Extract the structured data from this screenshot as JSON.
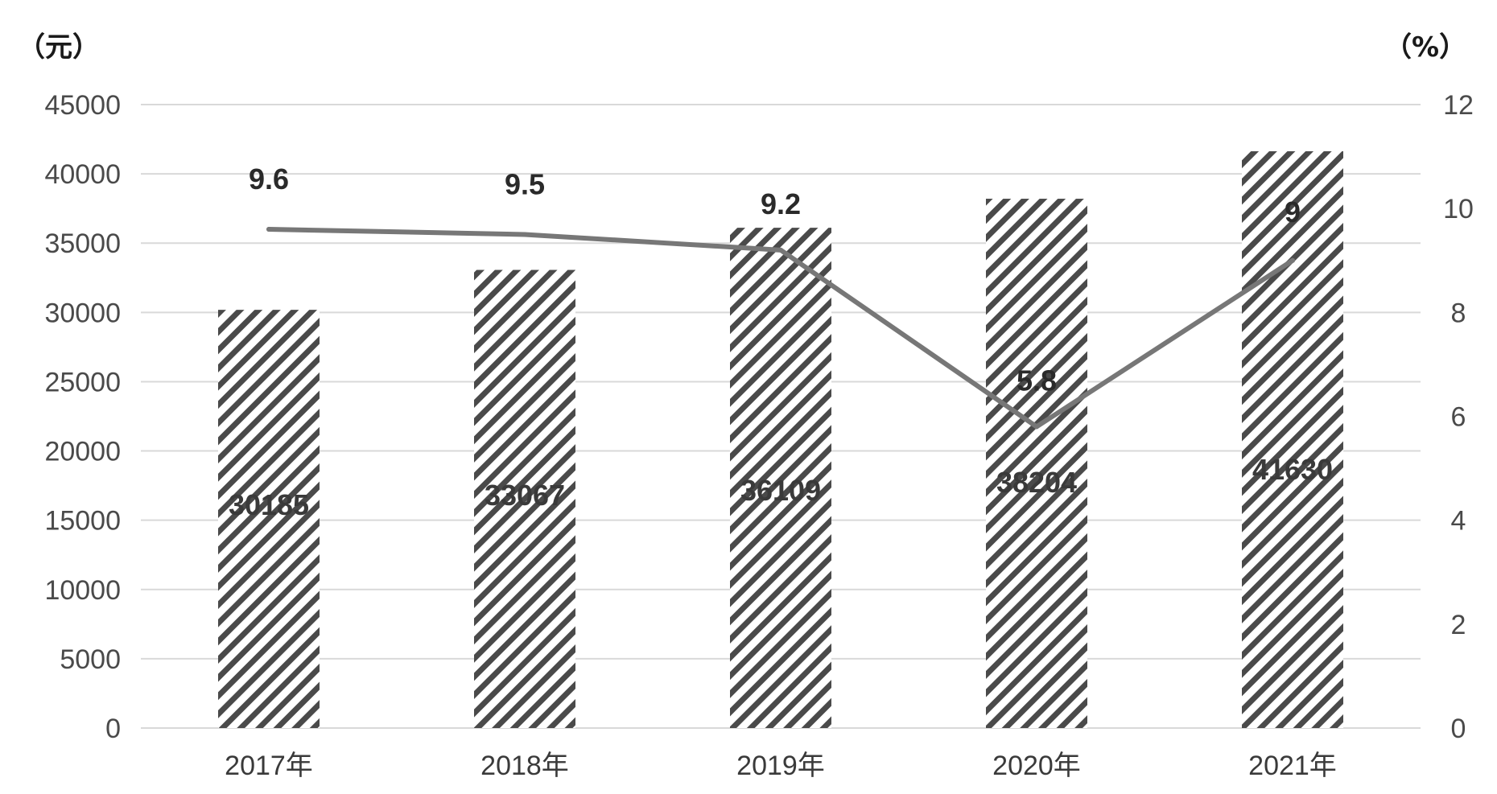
{
  "chart_data": {
    "type": "bar",
    "categories": [
      "2017年",
      "2018年",
      "2019年",
      "2020年",
      "2021年"
    ],
    "series": [
      {
        "type": "bar",
        "axis": "left",
        "values": [
          30185,
          33067,
          36109,
          38204,
          41630
        ],
        "fill": "diagonal-hatch",
        "color": "#4a4a4a"
      },
      {
        "type": "line",
        "axis": "right",
        "values": [
          9.6,
          9.5,
          9.2,
          5.8,
          9
        ],
        "color": "#777777"
      }
    ],
    "y_left": {
      "unit": "（元）",
      "ticks": [
        "0",
        "5000",
        "10000",
        "15000",
        "20000",
        "25000",
        "30000",
        "35000",
        "40000",
        "45000"
      ],
      "range": [
        0,
        45000
      ]
    },
    "y_right": {
      "unit": "（%）",
      "ticks": [
        "0",
        "2",
        "4",
        "6",
        "8",
        "10",
        "12"
      ],
      "range": [
        0,
        12
      ]
    },
    "bar_labels": [
      "30185",
      "33067",
      "36109",
      "38204",
      "41630"
    ],
    "line_labels": [
      "9.6",
      "9.5",
      "9.2",
      "5.8",
      "9"
    ],
    "grid": true,
    "legend": "none"
  }
}
